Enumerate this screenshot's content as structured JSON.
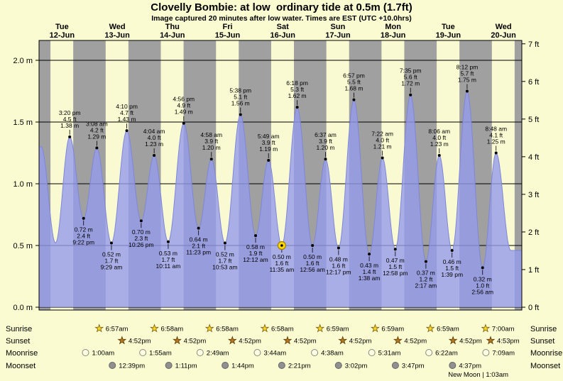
{
  "chart_data": {
    "type": "area",
    "title": "Clovelly Bombie: at low  ordinary tide at 0.5m (1.7ft)",
    "subtitle": "Image captured 20 minutes after low water. Times are EST (UTC +10.0hrs)",
    "unit_left": "m",
    "unit_right": "ft",
    "ylim_m": [
      0,
      2.16
    ],
    "yticks_m": [
      "0.0 m",
      "0.5 m",
      "1.0 m",
      "1.5 m",
      "2.0 m"
    ],
    "yticks_ft": [
      "0 ft",
      "1 ft",
      "2 ft",
      "3 ft",
      "4 ft",
      "5 ft",
      "6 ft",
      "7 ft"
    ],
    "days": [
      "Tue 12-Jun",
      "Wed 13-Jun",
      "Thu 14-Jun",
      "Fri 15-Jun",
      "Sat 16-Jun",
      "Sun 17-Jun",
      "Mon 18-Jun",
      "Tue 19-Jun",
      "Wed 20-Jun"
    ],
    "colors": {
      "day_band": "#fafad2",
      "night_band": "#a0a0a0",
      "tide_fill": "#959bec",
      "tide_edge": "#7e86d8",
      "day_label": "#ff0000",
      "current_marker": "#ffd700"
    },
    "tide_points": [
      {
        "day": 0,
        "time": "2:55 am",
        "m": "1.30",
        "ft": "",
        "type": "high",
        "labeled": false
      },
      {
        "day": 0,
        "time": "9:10 am",
        "m": "0.52",
        "ft": "",
        "type": "low",
        "labeled": false
      },
      {
        "day": 0,
        "time": "3:20 pm",
        "m": "1.38",
        "ft": "4.5",
        "type": "high"
      },
      {
        "day": 0,
        "time": "9:22 pm",
        "m": "0.72",
        "ft": "2.4",
        "type": "low"
      },
      {
        "day": 1,
        "time": "3:08 am",
        "m": "1.29",
        "ft": "4.2",
        "type": "high"
      },
      {
        "day": 1,
        "time": "9:29 am",
        "m": "0.52",
        "ft": "1.7",
        "type": "low"
      },
      {
        "day": 1,
        "time": "4:10 pm",
        "m": "1.43",
        "ft": "4.7",
        "type": "high"
      },
      {
        "day": 1,
        "time": "10:26 pm",
        "m": "0.70",
        "ft": "2.3",
        "type": "low"
      },
      {
        "day": 2,
        "time": "4:04 am",
        "m": "1.23",
        "ft": "4.0",
        "type": "high"
      },
      {
        "day": 2,
        "time": "10:11 am",
        "m": "0.53",
        "ft": "1.7",
        "type": "low"
      },
      {
        "day": 2,
        "time": "4:56 pm",
        "m": "1.49",
        "ft": "4.9",
        "type": "high"
      },
      {
        "day": 2,
        "time": "11:23 pm",
        "m": "0.64",
        "ft": "2.1",
        "type": "low"
      },
      {
        "day": 3,
        "time": "4:58 am",
        "m": "1.20",
        "ft": "3.9",
        "type": "high"
      },
      {
        "day": 3,
        "time": "10:53 am",
        "m": "0.52",
        "ft": "1.7",
        "type": "low"
      },
      {
        "day": 3,
        "time": "5:38 pm",
        "m": "1.56",
        "ft": "5.1",
        "type": "high"
      },
      {
        "day": 4,
        "time": "12:12 am",
        "m": "0.58",
        "ft": "1.9",
        "type": "low"
      },
      {
        "day": 4,
        "time": "5:49 am",
        "m": "1.19",
        "ft": "3.9",
        "type": "high"
      },
      {
        "day": 4,
        "time": "11:35 am",
        "m": "0.50",
        "ft": "1.6",
        "type": "low",
        "current": true
      },
      {
        "day": 4,
        "time": "6:18 pm",
        "m": "1.62",
        "ft": "5.3",
        "type": "high"
      },
      {
        "day": 5,
        "time": "12:56 am",
        "m": "0.50",
        "ft": "1.6",
        "type": "low"
      },
      {
        "day": 5,
        "time": "6:37 am",
        "m": "1.20",
        "ft": "3.9",
        "type": "high"
      },
      {
        "day": 5,
        "time": "12:17 pm",
        "m": "0.48",
        "ft": "1.6",
        "type": "low"
      },
      {
        "day": 5,
        "time": "6:57 pm",
        "m": "1.68",
        "ft": "5.5",
        "type": "high"
      },
      {
        "day": 6,
        "time": "1:38 am",
        "m": "0.43",
        "ft": "1.4",
        "type": "low"
      },
      {
        "day": 6,
        "time": "7:22 am",
        "m": "1.21",
        "ft": "4.0",
        "type": "high"
      },
      {
        "day": 6,
        "time": "12:58 pm",
        "m": "0.47",
        "ft": "1.5",
        "type": "low"
      },
      {
        "day": 6,
        "time": "7:35 pm",
        "m": "1.72",
        "ft": "5.6",
        "type": "high"
      },
      {
        "day": 7,
        "time": "2:17 am",
        "m": "0.37",
        "ft": "1.2",
        "type": "low"
      },
      {
        "day": 7,
        "time": "8:06 am",
        "m": "1.23",
        "ft": "4.0",
        "type": "high"
      },
      {
        "day": 7,
        "time": "1:39 pm",
        "m": "0.46",
        "ft": "1.5",
        "type": "low"
      },
      {
        "day": 7,
        "time": "8:12 pm",
        "m": "1.75",
        "ft": "5.7",
        "type": "high"
      },
      {
        "day": 8,
        "time": "2:56 am",
        "m": "0.32",
        "ft": "1.0",
        "type": "low"
      },
      {
        "day": 8,
        "time": "8:48 am",
        "m": "1.25",
        "ft": "4.1",
        "type": "high"
      },
      {
        "day": 8,
        "time": "3:10 pm",
        "m": "0.46",
        "ft": "",
        "type": "low",
        "labeled": false
      }
    ]
  },
  "astro": {
    "rows": [
      {
        "id": "sunrise",
        "label": "Sunrise",
        "icon": "sunrise-star",
        "entries": [
          {
            "day": 1,
            "time": "6:57am"
          },
          {
            "day": 2,
            "time": "6:58am"
          },
          {
            "day": 3,
            "time": "6:58am"
          },
          {
            "day": 4,
            "time": "6:58am"
          },
          {
            "day": 5,
            "time": "6:59am"
          },
          {
            "day": 6,
            "time": "6:59am"
          },
          {
            "day": 7,
            "time": "6:59am"
          },
          {
            "day": 8,
            "time": "7:00am"
          }
        ]
      },
      {
        "id": "sunset",
        "label": "Sunset",
        "icon": "sunset-star",
        "entries": [
          {
            "day": 1,
            "time": "4:52pm"
          },
          {
            "day": 2,
            "time": "4:52pm"
          },
          {
            "day": 3,
            "time": "4:52pm"
          },
          {
            "day": 4,
            "time": "4:52pm"
          },
          {
            "day": 5,
            "time": "4:52pm"
          },
          {
            "day": 6,
            "time": "4:52pm"
          },
          {
            "day": 7,
            "time": "4:52pm"
          },
          {
            "day": 8,
            "time": "4:53pm"
          }
        ]
      },
      {
        "id": "moonrise",
        "label": "Moonrise",
        "icon": "moonrise-circle",
        "entries": [
          {
            "day": 1,
            "time": "1:00am"
          },
          {
            "day": 2,
            "time": "1:55am"
          },
          {
            "day": 3,
            "time": "2:49am"
          },
          {
            "day": 4,
            "time": "3:44am"
          },
          {
            "day": 5,
            "time": "4:38am"
          },
          {
            "day": 6,
            "time": "5:31am"
          },
          {
            "day": 7,
            "time": "6:22am"
          },
          {
            "day": 8,
            "time": "7:09am"
          }
        ]
      },
      {
        "id": "moonset",
        "label": "Moonset",
        "icon": "moonset-circle",
        "entries": [
          {
            "day": 1,
            "time": "12:39pm"
          },
          {
            "day": 2,
            "time": "1:11pm"
          },
          {
            "day": 3,
            "time": "1:44pm"
          },
          {
            "day": 4,
            "time": "2:21pm"
          },
          {
            "day": 5,
            "time": "3:02pm"
          },
          {
            "day": 6,
            "time": "3:47pm"
          },
          {
            "day": 7,
            "time": "4:37pm"
          }
        ]
      }
    ],
    "new_moon": {
      "text": "New Moon | 1:03am",
      "day": 8,
      "time": "1:03am"
    }
  }
}
